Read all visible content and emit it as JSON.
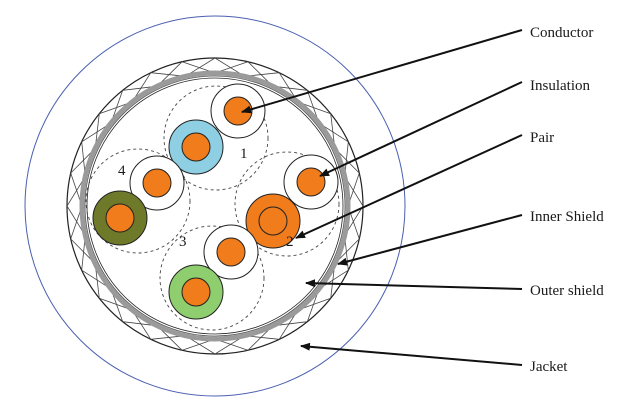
{
  "labels": {
    "conductor": "Conductor",
    "insulation": "Insulation",
    "pair": "Pair",
    "inner_shield": "Inner Shield",
    "outer_shield": "Outer shield",
    "jacket": "Jacket"
  },
  "pair_numbers": [
    "1",
    "2",
    "3",
    "4"
  ],
  "colors": {
    "jacket_outline": "#4a5fb0",
    "conductor": "#f07c1c",
    "insulation_blue": "#8ecfe3",
    "insulation_olive": "#6e7a2a",
    "insulation_green": "#8fce6f",
    "inner_shield": "#9a9a9a",
    "outline": "#222222"
  }
}
